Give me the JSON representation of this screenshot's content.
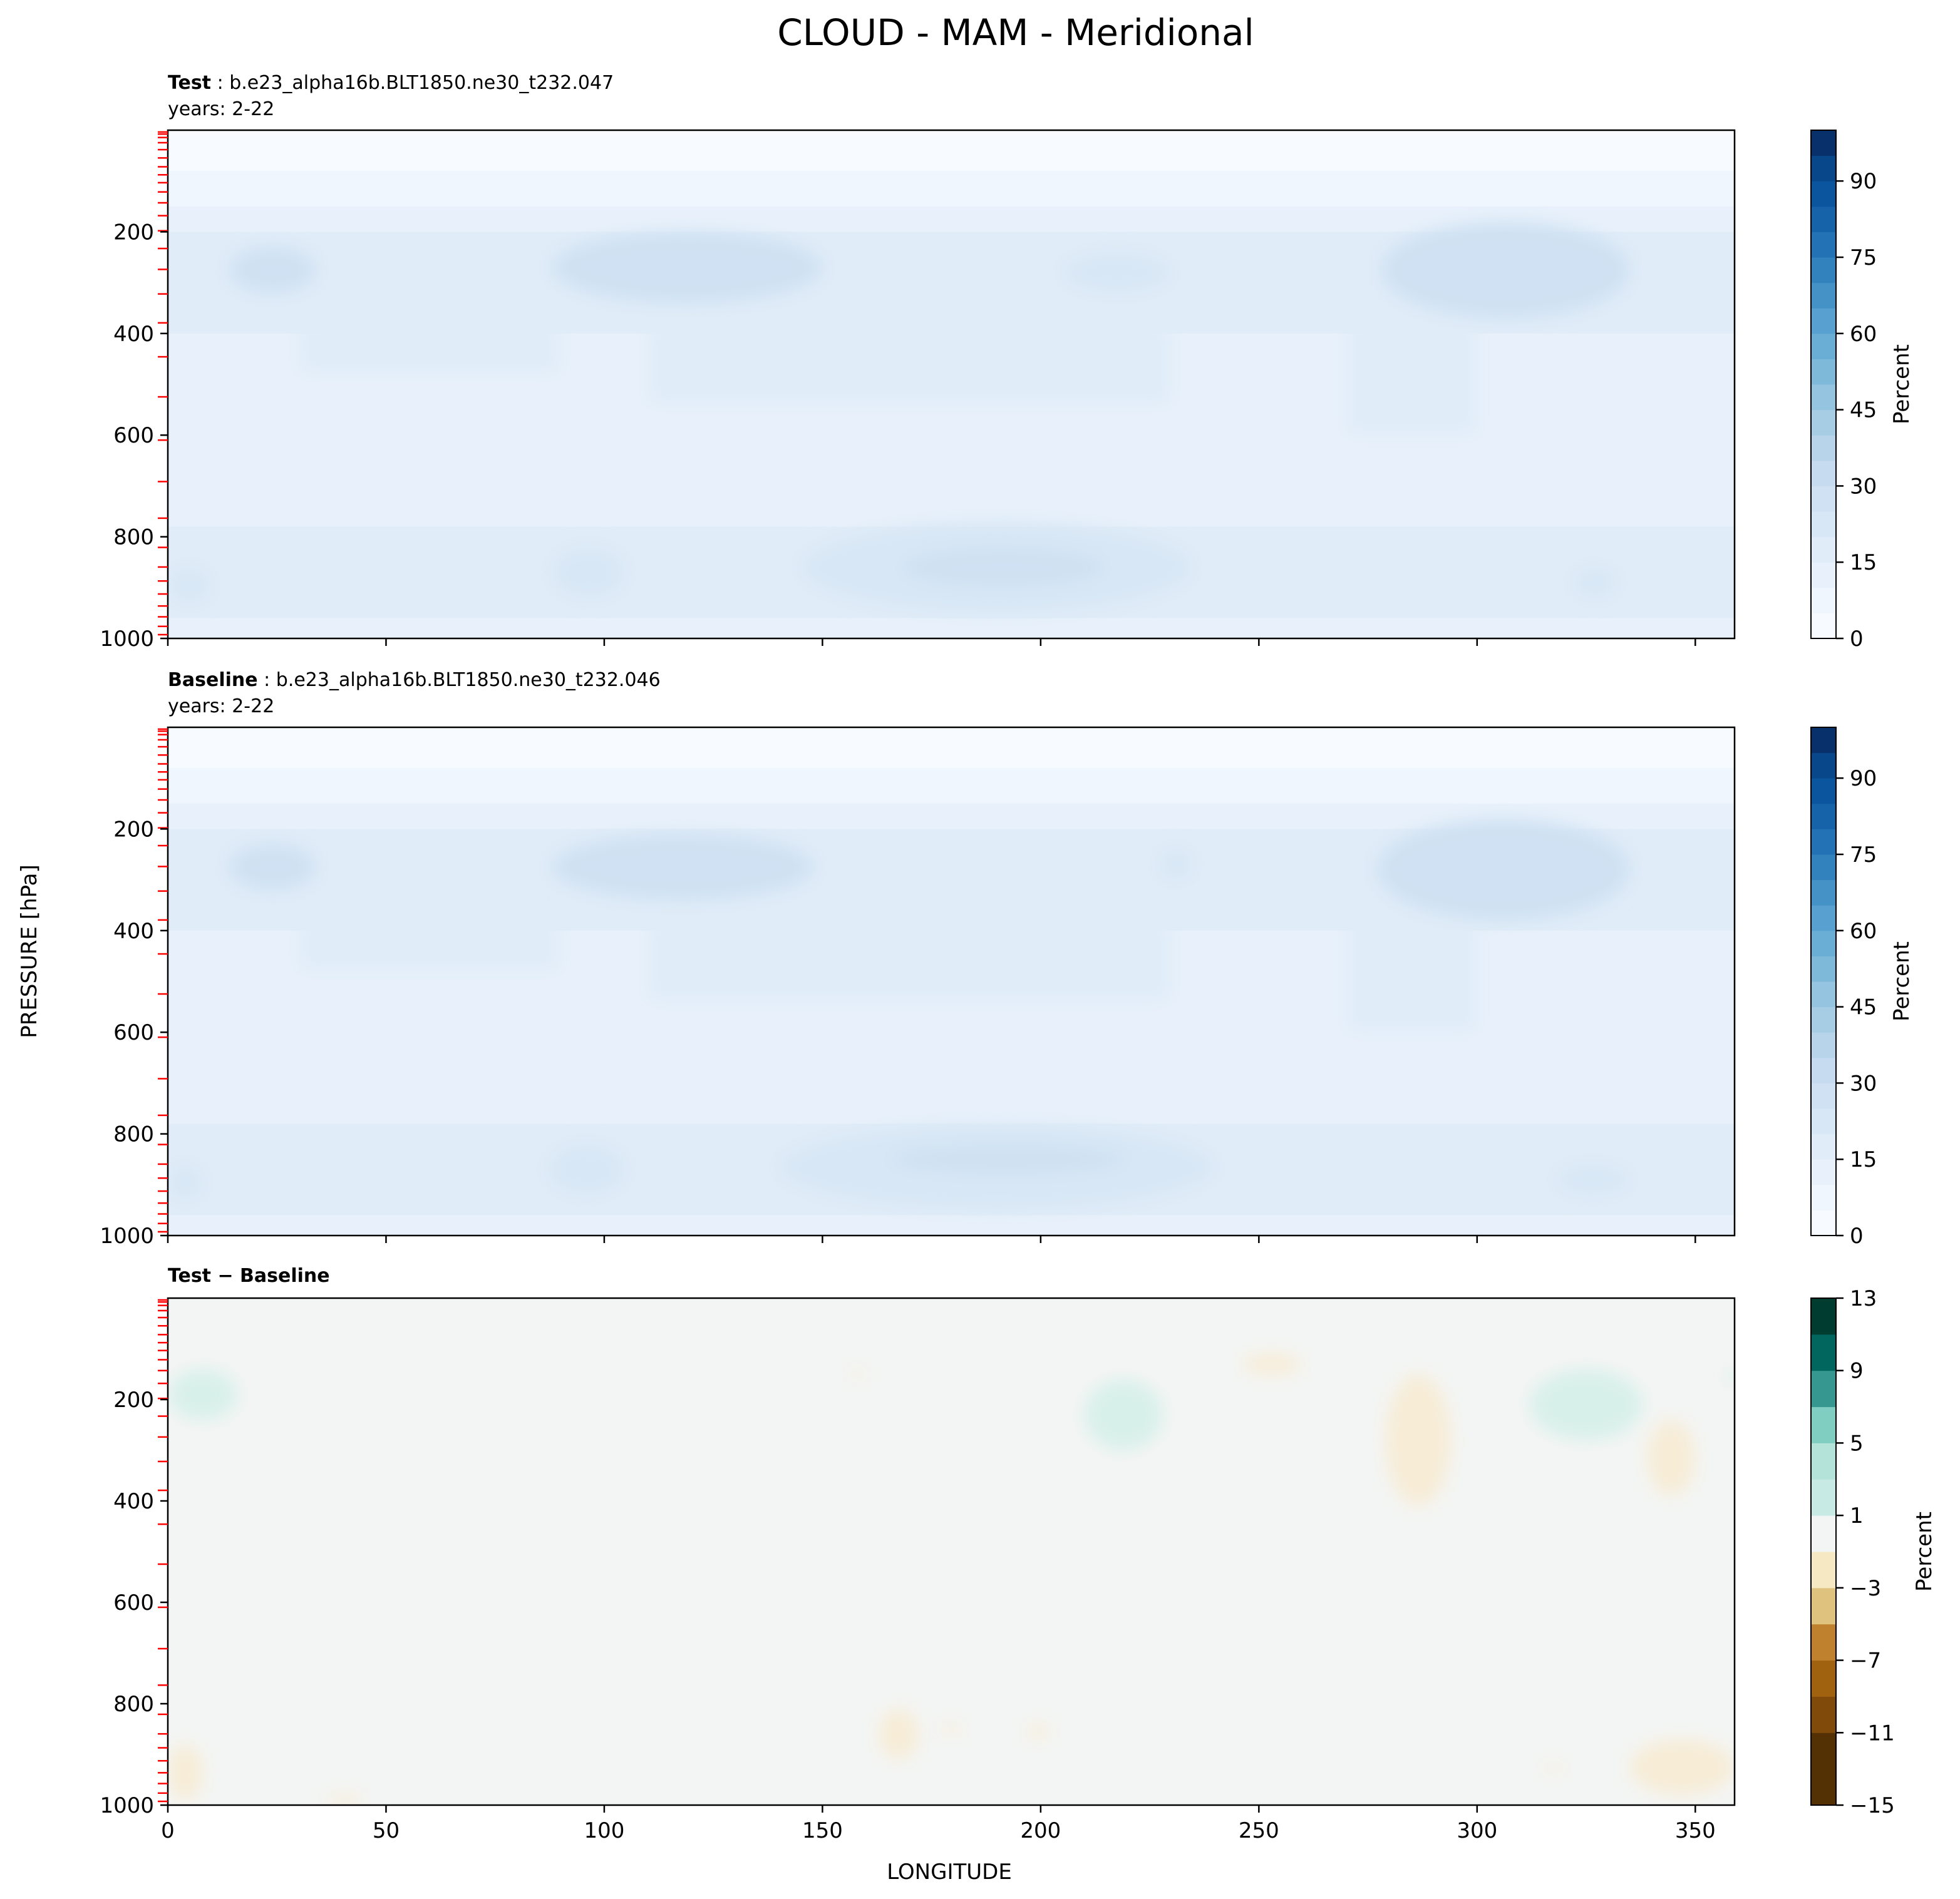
{
  "figure": {
    "title": "CLOUD - MAM - Meridional",
    "ylabel": "PRESSURE [hPa]",
    "xlabel": "LONGITUDE"
  },
  "colors": {
    "blues": [
      "#f7fbff",
      "#f0f6fd",
      "#e8f1fb",
      "#e0ecf8",
      "#d8e7f5",
      "#cfe1f2",
      "#c6dbef",
      "#b7d4ea",
      "#a6cde4",
      "#94c4df",
      "#7fb9da",
      "#6aaed6",
      "#57a0cf",
      "#4592c7",
      "#3282be",
      "#2272b5",
      "#1663aa",
      "#0b559f",
      "#08478a",
      "#08306b"
    ],
    "diff": [
      "#543005",
      "#7f4a0a",
      "#a0620f",
      "#bf812d",
      "#dfc27d",
      "#f6e8c3",
      "#f5f5f5",
      "#c7eae5",
      "#80cdc1",
      "#35978f",
      "#01665e",
      "#003c30"
    ],
    "diff_field": "#f3f5f4",
    "diff_pos": "#d8f0ea",
    "diff_neg": "#f7ecd6",
    "marker": "#ff0000"
  },
  "chart_data": [
    {
      "type": "heatmap",
      "role": "test",
      "title_bold": "Test",
      "title_rest": " : b.e23_alpha16b.BLT1850.ne30_t232.047",
      "subtitle": "years: 2-22",
      "xlim": [
        0,
        359
      ],
      "ylim": [
        1000,
        0
      ],
      "yticks": [
        200,
        400,
        600,
        800,
        1000
      ],
      "xticks": [
        0,
        50,
        100,
        150,
        200,
        250,
        300,
        350
      ],
      "colorbar": {
        "label": "Percent",
        "min": 0,
        "max": 100,
        "ticks": [
          "0",
          "15",
          "30",
          "45",
          "60",
          "75",
          "90"
        ],
        "tick_values": [
          0,
          15,
          30,
          45,
          60,
          75,
          90
        ]
      }
    },
    {
      "type": "heatmap",
      "role": "baseline",
      "title_bold": "Baseline",
      "title_rest": " : b.e23_alpha16b.BLT1850.ne30_t232.046",
      "subtitle": "years: 2-22",
      "xlim": [
        0,
        359
      ],
      "ylim": [
        1000,
        0
      ],
      "yticks": [
        200,
        400,
        600,
        800,
        1000
      ],
      "xticks": [
        0,
        50,
        100,
        150,
        200,
        250,
        300,
        350
      ],
      "colorbar": {
        "label": "Percent",
        "min": 0,
        "max": 100,
        "ticks": [
          "0",
          "15",
          "30",
          "45",
          "60",
          "75",
          "90"
        ],
        "tick_values": [
          0,
          15,
          30,
          45,
          60,
          75,
          90
        ]
      }
    },
    {
      "type": "heatmap",
      "role": "difference",
      "title_bold": "Test − Baseline",
      "xlim": [
        0,
        359
      ],
      "ylim": [
        1000,
        0
      ],
      "yticks": [
        200,
        400,
        600,
        800,
        1000
      ],
      "xticks": [
        0,
        50,
        100,
        150,
        200,
        250,
        300,
        350
      ],
      "xtick_labels": [
        "0",
        "50",
        "100",
        "150",
        "200",
        "250",
        "300",
        "350"
      ],
      "colorbar": {
        "label": "Percent",
        "min": -15,
        "max": 13,
        "ticks": [
          "−15",
          "−11",
          "−7",
          "−3",
          "1",
          "5",
          "9",
          "13"
        ],
        "tick_values": [
          -15,
          -11,
          -7,
          -3,
          1,
          5,
          9,
          13
        ]
      }
    }
  ],
  "pressure_levels": [
    3.6,
    7.6,
    14.4,
    24.6,
    38.3,
    54.6,
    72.0,
    87.8,
    103.3,
    121.5,
    142.9,
    168.2,
    197.9,
    232.8,
    273.9,
    322.2,
    379.1,
    445.9,
    524.7,
    609.8,
    691.4,
    763.4,
    820.9,
    859.5,
    887.0,
    912.6,
    936.2,
    957.5,
    976.3,
    992.6
  ],
  "fields": [
    {
      "role": "test",
      "blobs": [
        {
          "lon": [
            14,
            34
          ],
          "p": [
            230,
            320
          ],
          "value": 26
        },
        {
          "lon": [
            88,
            150
          ],
          "p": [
            200,
            340
          ],
          "value": 26
        },
        {
          "lon": [
            205,
            230
          ],
          "p": [
            240,
            320
          ],
          "value": 24
        },
        {
          "lon": [
            278,
            335
          ],
          "p": [
            180,
            370
          ],
          "value": 26
        },
        {
          "lon": [
            145,
            235
          ],
          "p": [
            770,
            950
          ],
          "value": 24
        },
        {
          "lon": [
            168,
            215
          ],
          "p": [
            820,
            900
          ],
          "value": 27
        },
        {
          "lon": [
            88,
            105
          ],
          "p": [
            820,
            920
          ],
          "value": 23
        },
        {
          "lon": [
            0,
            10
          ],
          "p": [
            860,
            930
          ],
          "value": 23
        },
        {
          "lon": [
            322,
            332
          ],
          "p": [
            860,
            920
          ],
          "value": 23
        }
      ],
      "dry": [
        {
          "lon": [
            50,
            85
          ],
          "p": [
            660,
            740
          ],
          "value": 11
        }
      ]
    },
    {
      "role": "baseline",
      "blobs": [
        {
          "lon": [
            14,
            34
          ],
          "p": [
            230,
            320
          ],
          "value": 26
        },
        {
          "lon": [
            88,
            148
          ],
          "p": [
            210,
            340
          ],
          "value": 26
        },
        {
          "lon": [
            227,
            235
          ],
          "p": [
            240,
            300
          ],
          "value": 24
        },
        {
          "lon": [
            277,
            335
          ],
          "p": [
            180,
            380
          ],
          "value": 26
        },
        {
          "lon": [
            140,
            240
          ],
          "p": [
            780,
            950
          ],
          "value": 24
        },
        {
          "lon": [
            165,
            220
          ],
          "p": [
            820,
            880
          ],
          "value": 28
        },
        {
          "lon": [
            87,
            105
          ],
          "p": [
            820,
            920
          ],
          "value": 23
        },
        {
          "lon": [
            0,
            8
          ],
          "p": [
            860,
            930
          ],
          "value": 23
        },
        {
          "lon": [
            318,
            335
          ],
          "p": [
            860,
            920
          ],
          "value": 23
        }
      ],
      "dry": [
        {
          "lon": [
            52,
            76
          ],
          "p": [
            680,
            720
          ],
          "value": 11
        }
      ]
    },
    {
      "role": "difference",
      "positive": [
        {
          "lon": [
            0,
            16
          ],
          "p": [
            140,
            240
          ]
        },
        {
          "lon": [
            210,
            228
          ],
          "p": [
            160,
            300
          ]
        },
        {
          "lon": [
            312,
            338
          ],
          "p": [
            140,
            280
          ]
        },
        {
          "lon": [
            358,
            359
          ],
          "p": [
            140,
            170
          ]
        }
      ],
      "negative": [
        {
          "lon": [
            246,
            260
          ],
          "p": [
            110,
            150
          ]
        },
        {
          "lon": [
            279,
            294
          ],
          "p": [
            150,
            410
          ]
        },
        {
          "lon": [
            339,
            350
          ],
          "p": [
            240,
            390
          ]
        },
        {
          "lon": [
            163,
            172
          ],
          "p": [
            810,
            910
          ]
        },
        {
          "lon": [
            177,
            182
          ],
          "p": [
            840,
            860
          ]
        },
        {
          "lon": [
            197,
            202
          ],
          "p": [
            840,
            870
          ]
        },
        {
          "lon": [
            0,
            8
          ],
          "p": [
            880,
            990
          ]
        },
        {
          "lon": [
            36,
            45
          ],
          "p": [
            980,
            1000
          ]
        },
        {
          "lon": [
            315,
            320
          ],
          "p": [
            920,
            935
          ]
        },
        {
          "lon": [
            335,
            359
          ],
          "p": [
            870,
            980
          ]
        },
        {
          "lon": [
            156,
            160
          ],
          "p": [
            145,
            155
          ]
        }
      ]
    }
  ]
}
